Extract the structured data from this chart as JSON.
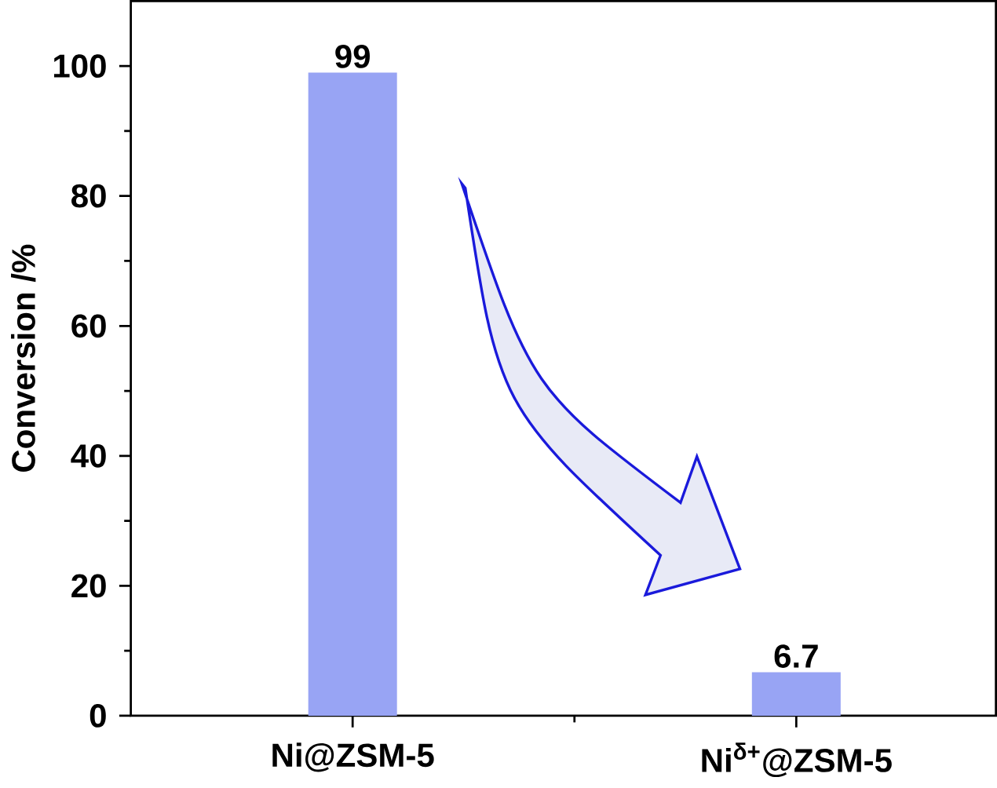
{
  "chart_data": {
    "type": "bar",
    "ylabel": "Conversion /%",
    "categories": [
      "Ni@ZSM-5",
      "Ni$^{δ+}$@ZSM-5"
    ],
    "values": [
      99,
      6.7
    ],
    "color": "#98a4f4",
    "ylim": [
      0,
      110
    ],
    "yticks": [
      0,
      20,
      40,
      60,
      80,
      100
    ],
    "data_labels": true
  }
}
